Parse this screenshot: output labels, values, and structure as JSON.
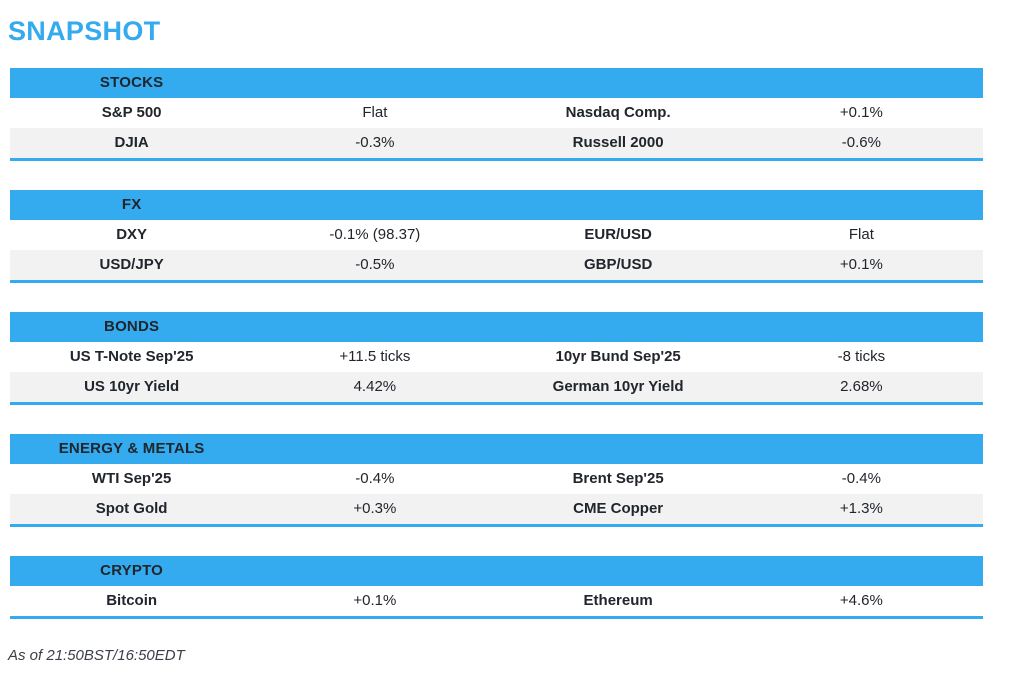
{
  "page": {
    "title": "SNAPSHOT",
    "footer": "As of 21:50BST/16:50EDT"
  },
  "colors": {
    "accent": "#34AAEF",
    "row_alt": "#F2F2F2",
    "header_text": "#FFFFFF",
    "body_text": "#21252C"
  },
  "sections": [
    {
      "header": "STOCKS",
      "rows": [
        {
          "label1": "S&P 500",
          "value1": "Flat",
          "label2": "Nasdaq Comp.",
          "value2": "+0.1%"
        },
        {
          "label1": "DJIA",
          "value1": "-0.3%",
          "label2": "Russell 2000",
          "value2": "-0.6%"
        }
      ]
    },
    {
      "header": "FX",
      "rows": [
        {
          "label1": "DXY",
          "value1": "-0.1% (98.37)",
          "label2": "EUR/USD",
          "value2": "Flat"
        },
        {
          "label1": "USD/JPY",
          "value1": "-0.5%",
          "label2": "GBP/USD",
          "value2": "+0.1%"
        }
      ]
    },
    {
      "header": "BONDS",
      "rows": [
        {
          "label1": "US T-Note Sep'25",
          "value1": "+11.5 ticks",
          "label2": "10yr Bund Sep'25",
          "value2": "-8 ticks"
        },
        {
          "label1": "US 10yr Yield",
          "value1": "4.42%",
          "label2": "German 10yr Yield",
          "value2": "2.68%"
        }
      ]
    },
    {
      "header": "ENERGY & METALS",
      "rows": [
        {
          "label1": "WTI Sep'25",
          "value1": "-0.4%",
          "label2": "Brent Sep'25",
          "value2": "-0.4%"
        },
        {
          "label1": "Spot Gold",
          "value1": "+0.3%",
          "label2": "CME Copper",
          "value2": "+1.3%"
        }
      ]
    },
    {
      "header": "CRYPTO",
      "rows": [
        {
          "label1": "Bitcoin",
          "value1": "+0.1%",
          "label2": "Ethereum",
          "value2": "+4.6%"
        }
      ]
    }
  ]
}
